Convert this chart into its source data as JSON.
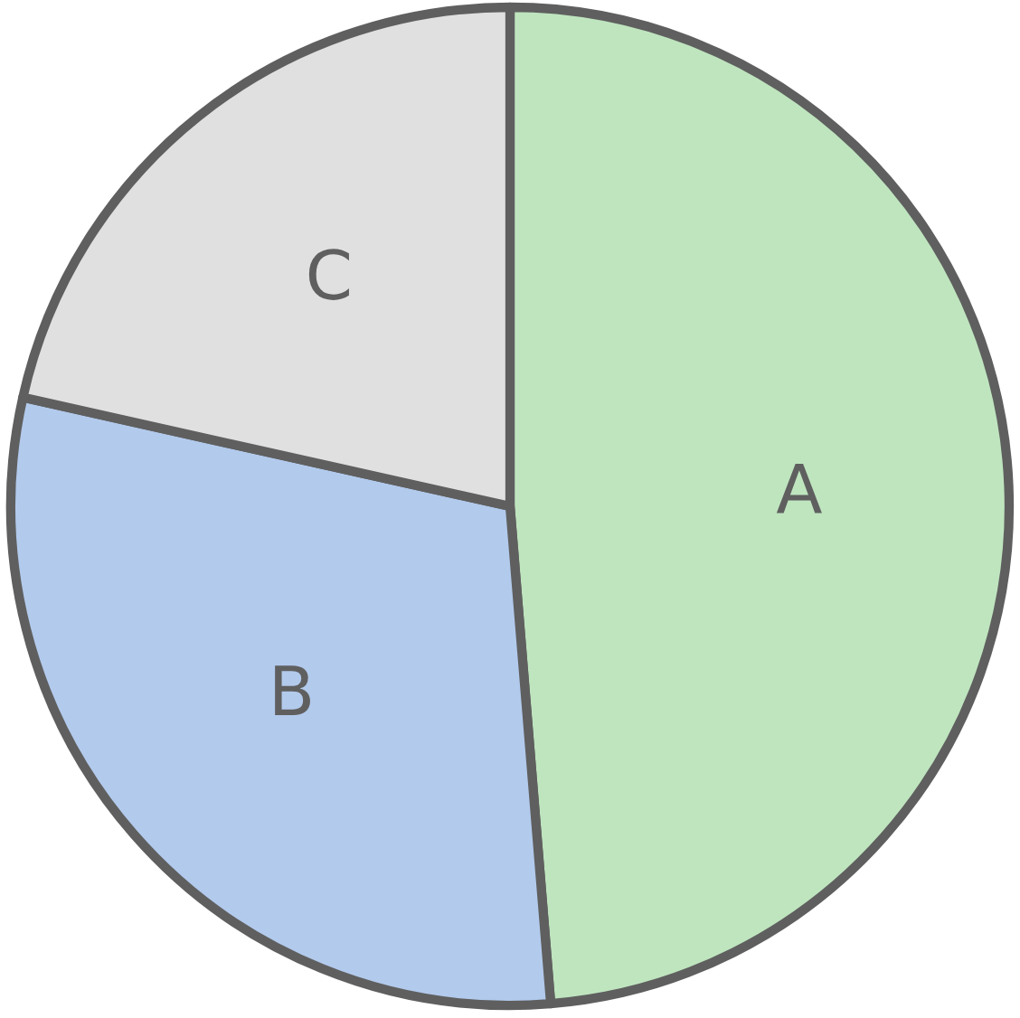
{
  "chart_data": {
    "type": "pie",
    "categories": [
      "A",
      "B",
      "C"
    ],
    "values": [
      48.7,
      29.8,
      21.5
    ],
    "colors": [
      "#bfe5bf",
      "#b2caec",
      "#e0e0e0"
    ]
  }
}
